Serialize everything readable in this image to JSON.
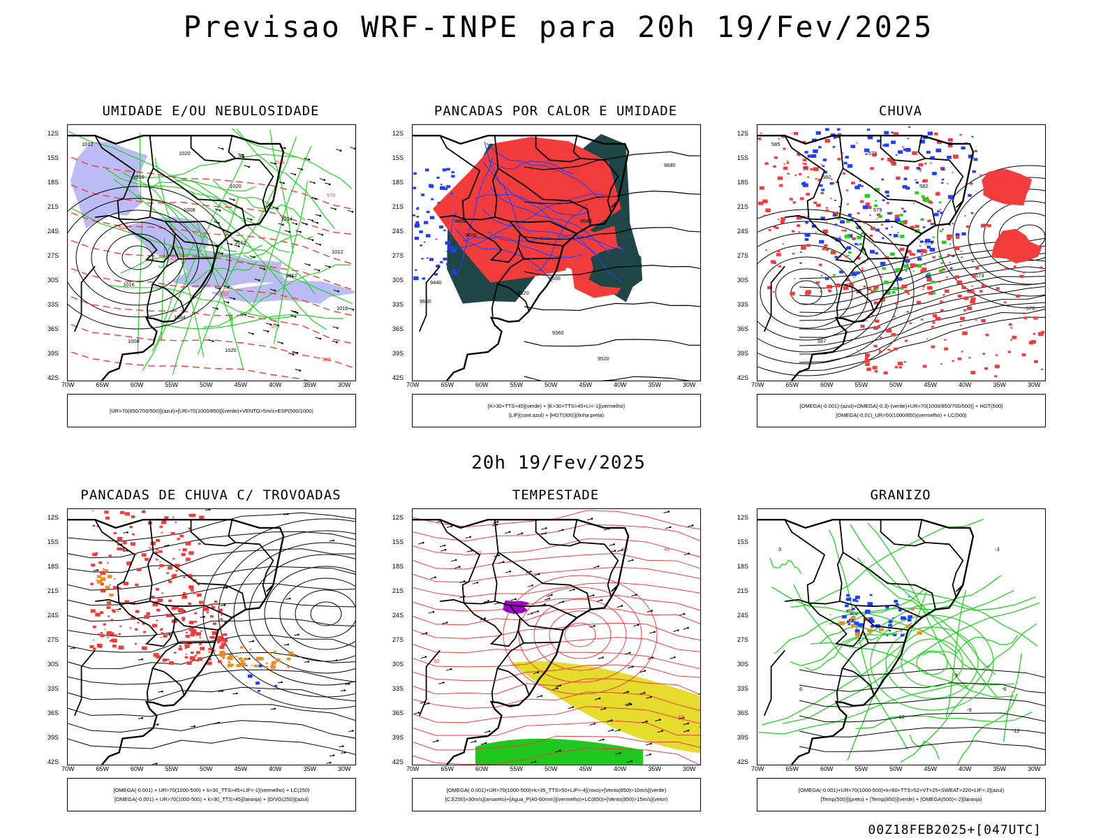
{
  "page": {
    "title": "Previsao WRF-INPE  para 20h 19/Fev/2025",
    "subtitle": "20h 19/Fev/2025",
    "footer": "00Z18FEB2025+[047UTC]"
  },
  "axes": {
    "lat_labels": [
      "12S",
      "15S",
      "18S",
      "21S",
      "24S",
      "27S",
      "30S",
      "33S",
      "36S",
      "39S",
      "42S"
    ],
    "lon_labels": [
      "70W",
      "65W",
      "60W",
      "55W",
      "50W",
      "45W",
      "40W",
      "35W",
      "30W"
    ]
  },
  "colors": {
    "red": "#f23c3c",
    "green": "#1ed21e",
    "blue": "#2040ff",
    "lavender": "#b4b4f5",
    "teal": "#1e4646",
    "yellow": "#e6dc2d",
    "purple": "#a000c8",
    "orange": "#f08c1e"
  },
  "panels": [
    {
      "title": "UMIDADE E/OU NEBULOSIDADE",
      "legend": [
        "[UR>70(850/700/500)](azul)+[UR>70(1000/850)](verde)+VENTO>5m/s+ESP(500/1000)"
      ],
      "contour_labels": [
        "1012",
        "1016",
        "1008",
        "1012",
        "1012",
        "1016",
        "1008",
        "1020",
        "1020",
        "1004",
        "1012",
        "1016",
        "1004",
        "1020",
        "576",
        "570",
        "564",
        "558",
        "552",
        "576",
        "582"
      ]
    },
    {
      "title": "PANCADAS POR CALOR E UMIDADE",
      "legend": [
        "[K>30+TTS>45](verde) + [K>30+TTS>45+LI<-1](vermelho)",
        "[LIF](cont.azul) + [HGT(300)](linha preta)"
      ],
      "contour_labels": [
        "9680",
        "9600",
        "9600",
        "9560",
        "9520",
        "9600",
        "9440",
        "9360",
        "9520",
        "9600"
      ]
    },
    {
      "title": "CHUVA",
      "legend": [
        "[OMEGA(-0.001)-(azul)+OMEGA(-0.3)-(verde)+UR>70(1000/850/700/500)] + HGT(500)",
        "[OMEGA(-0.01)_UR>50(1000/850)(vermelho) + LC(500)"
      ],
      "contour_labels": [
        "585",
        "582",
        "579",
        "576",
        "573",
        "570",
        "567",
        "576",
        "582"
      ]
    },
    {
      "title": "PANCADAS DE CHUVA C/ TROVOADAS",
      "legend": [
        "[OMEGA(-0.001) + UR>70(1000-500) + k>30_TTS>45+LIF<-1](vermelho) + LC(250)",
        "[OMEGA(-0.001) + UR>70(1000-500) + k>30_TTS>45](laranja) + [DIVG(250)](azul)"
      ],
      "contour_labels": []
    },
    {
      "title": "TEMPESTADE",
      "legend": [
        "[OMEGA(-0.001)+UR>70(1000-500)+k>35_TTS>50+LIF<-4](roxo)+[Vento(850)>10m/s](verde)",
        "[CJ(250)>30m/s](amarelo)+[Agua_P(40-60mm)](vermelho)+LC(850)+[Vento(850)>15m/s](vetor)"
      ],
      "contour_labels": [
        "40",
        "50",
        "40",
        "50",
        "40"
      ]
    },
    {
      "title": "GRANIZO",
      "legend": [
        "[OMEGA(-0.001)+UR>70(1000-500)+k<60+TTS>52+VT>25+SWEAT>220+LIF<-2](azul)",
        "[Temp(500)](preto) + [Temp(850)](verde) + [OMEGA(500)<-2](laranja)"
      ],
      "contour_labels": [
        "-3",
        "-6",
        "-9",
        "-12",
        "-12",
        "-9",
        "3",
        "6"
      ]
    }
  ]
}
